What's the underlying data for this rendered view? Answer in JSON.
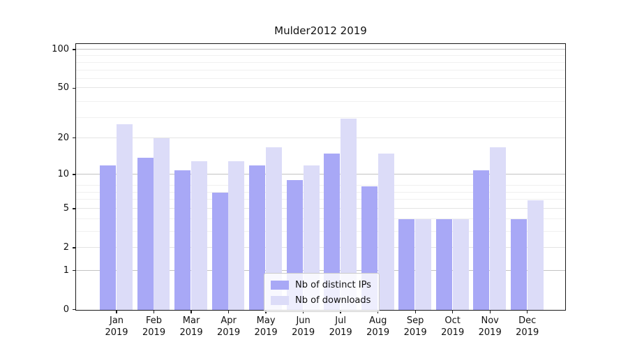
{
  "title": "Mulder2012 2019",
  "chart_data": {
    "type": "bar",
    "title": "Mulder2012 2019",
    "categories": [
      "Jan",
      "Feb",
      "Mar",
      "Apr",
      "May",
      "Jun",
      "Jul",
      "Aug",
      "Sep",
      "Oct",
      "Nov",
      "Dec"
    ],
    "year": "2019",
    "series": [
      {
        "name": "Nb of distinct IPs",
        "color": "#a8a8f6",
        "values": [
          12,
          14,
          11,
          7,
          12,
          9,
          15,
          8,
          4,
          4,
          11,
          4
        ]
      },
      {
        "name": "Nb of downloads",
        "color": "#dcdcf8",
        "values": [
          26,
          20,
          13,
          13,
          17,
          12,
          29,
          15,
          4,
          4,
          17,
          6
        ]
      }
    ],
    "yscale": "log10(1+y)",
    "yticks": [
      0,
      1,
      2,
      5,
      10,
      20,
      50,
      100
    ],
    "ylim": [
      0,
      110
    ],
    "xlabel": "",
    "ylabel": "",
    "grid": true,
    "legend_position": "lower center"
  }
}
